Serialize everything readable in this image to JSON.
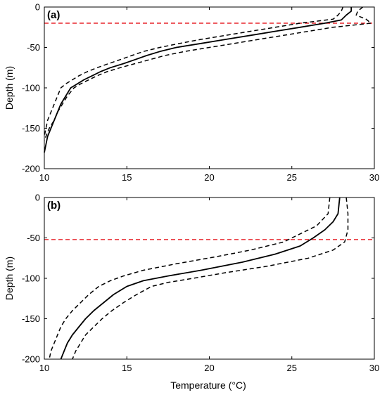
{
  "figure": {
    "ylabel": "Depth (m)",
    "xlabel": "Temperature (°C)"
  },
  "colors": {
    "profile": "#000000",
    "reference_line": "#e8262d",
    "axes": "#000000"
  },
  "chart_data": [
    {
      "type": "line",
      "panel_label": "(a)",
      "xlabel": "",
      "ylabel": "Depth (m)",
      "xlim": [
        10,
        30
      ],
      "ylim": [
        -200,
        0
      ],
      "xticks": [
        10,
        15,
        20,
        25,
        30
      ],
      "yticks": [
        0,
        -50,
        -100,
        -150,
        -200
      ],
      "grid": false,
      "legend": "none",
      "reference_line": {
        "y": -20,
        "style": "dashed",
        "color": "#e8262d"
      },
      "series": [
        {
          "role": "mean",
          "style": "solid",
          "points": [
            [
              28.6,
              0
            ],
            [
              28.6,
              -5
            ],
            [
              28.3,
              -10
            ],
            [
              28.0,
              -16
            ],
            [
              27.0,
              -20
            ],
            [
              25.5,
              -25
            ],
            [
              24.0,
              -30
            ],
            [
              22.5,
              -35
            ],
            [
              21.0,
              -40
            ],
            [
              19.5,
              -45
            ],
            [
              18.0,
              -50
            ],
            [
              17.0,
              -55
            ],
            [
              16.2,
              -60
            ],
            [
              15.5,
              -65
            ],
            [
              14.8,
              -70
            ],
            [
              14.0,
              -75
            ],
            [
              13.4,
              -80
            ],
            [
              12.9,
              -85
            ],
            [
              12.4,
              -90
            ],
            [
              12.0,
              -95
            ],
            [
              11.6,
              -100
            ],
            [
              11.3,
              -110
            ],
            [
              11.0,
              -120
            ],
            [
              10.8,
              -130
            ],
            [
              10.6,
              -140
            ],
            [
              10.4,
              -150
            ],
            [
              10.2,
              -160
            ],
            [
              10.1,
              -170
            ],
            [
              10.0,
              -180
            ]
          ]
        },
        {
          "role": "upper",
          "style": "dashed",
          "points": [
            [
              29.3,
              0
            ],
            [
              29.0,
              -5
            ],
            [
              28.9,
              -10
            ],
            [
              29.5,
              -15
            ],
            [
              29.8,
              -20
            ],
            [
              27.5,
              -25
            ],
            [
              26.0,
              -30
            ],
            [
              24.5,
              -35
            ],
            [
              23.0,
              -40
            ],
            [
              21.5,
              -45
            ],
            [
              20.0,
              -50
            ],
            [
              18.5,
              -55
            ],
            [
              17.3,
              -60
            ],
            [
              16.4,
              -65
            ],
            [
              15.5,
              -70
            ],
            [
              14.6,
              -75
            ],
            [
              13.8,
              -80
            ],
            [
              13.2,
              -85
            ],
            [
              12.7,
              -90
            ],
            [
              12.2,
              -95
            ],
            [
              11.8,
              -100
            ],
            [
              11.4,
              -110
            ],
            [
              11.1,
              -120
            ],
            [
              10.8,
              -130
            ],
            [
              10.6,
              -140
            ],
            [
              10.3,
              -150
            ],
            [
              10.1,
              -160
            ],
            [
              10.0,
              -165
            ]
          ]
        },
        {
          "role": "lower",
          "style": "dashed",
          "points": [
            [
              28.1,
              0
            ],
            [
              28.0,
              -5
            ],
            [
              27.8,
              -10
            ],
            [
              27.5,
              -15
            ],
            [
              25.5,
              -20
            ],
            [
              24.0,
              -25
            ],
            [
              22.5,
              -30
            ],
            [
              21.0,
              -35
            ],
            [
              19.5,
              -40
            ],
            [
              18.2,
              -45
            ],
            [
              17.0,
              -50
            ],
            [
              16.0,
              -55
            ],
            [
              15.3,
              -60
            ],
            [
              14.6,
              -65
            ],
            [
              13.9,
              -70
            ],
            [
              13.2,
              -75
            ],
            [
              12.6,
              -80
            ],
            [
              12.1,
              -85
            ],
            [
              11.7,
              -90
            ],
            [
              11.3,
              -95
            ],
            [
              11.0,
              -100
            ],
            [
              10.8,
              -110
            ],
            [
              10.6,
              -120
            ],
            [
              10.4,
              -130
            ],
            [
              10.2,
              -140
            ],
            [
              10.1,
              -150
            ],
            [
              10.0,
              -160
            ]
          ]
        }
      ]
    },
    {
      "type": "line",
      "panel_label": "(b)",
      "xlabel": "Temperature (°C)",
      "ylabel": "Depth (m)",
      "xlim": [
        10,
        30
      ],
      "ylim": [
        -200,
        0
      ],
      "xticks": [
        10,
        15,
        20,
        25,
        30
      ],
      "yticks": [
        0,
        -50,
        -100,
        -150,
        -200
      ],
      "grid": false,
      "legend": "none",
      "reference_line": {
        "y": -52,
        "style": "dashed",
        "color": "#e8262d"
      },
      "series": [
        {
          "role": "mean",
          "style": "solid",
          "points": [
            [
              27.9,
              0
            ],
            [
              27.8,
              -20
            ],
            [
              27.5,
              -30
            ],
            [
              27.0,
              -40
            ],
            [
              26.3,
              -50
            ],
            [
              25.5,
              -60
            ],
            [
              24.0,
              -70
            ],
            [
              22.0,
              -80
            ],
            [
              19.5,
              -90
            ],
            [
              17.5,
              -97
            ],
            [
              16.0,
              -103
            ],
            [
              15.0,
              -110
            ],
            [
              14.2,
              -120
            ],
            [
              13.6,
              -130
            ],
            [
              13.0,
              -140
            ],
            [
              12.5,
              -150
            ],
            [
              12.1,
              -160
            ],
            [
              11.7,
              -170
            ],
            [
              11.4,
              -180
            ],
            [
              11.2,
              -190
            ],
            [
              11.0,
              -200
            ]
          ]
        },
        {
          "role": "upper",
          "style": "dashed",
          "points": [
            [
              28.3,
              0
            ],
            [
              28.4,
              -20
            ],
            [
              28.4,
              -40
            ],
            [
              28.2,
              -55
            ],
            [
              27.5,
              -65
            ],
            [
              26.0,
              -75
            ],
            [
              23.5,
              -85
            ],
            [
              21.0,
              -93
            ],
            [
              19.0,
              -100
            ],
            [
              17.5,
              -105
            ],
            [
              16.5,
              -110
            ],
            [
              15.6,
              -120
            ],
            [
              14.8,
              -130
            ],
            [
              14.1,
              -140
            ],
            [
              13.5,
              -150
            ],
            [
              13.0,
              -160
            ],
            [
              12.5,
              -170
            ],
            [
              12.2,
              -180
            ],
            [
              11.9,
              -190
            ],
            [
              11.7,
              -200
            ]
          ]
        },
        {
          "role": "lower",
          "style": "dashed",
          "points": [
            [
              27.3,
              0
            ],
            [
              27.2,
              -20
            ],
            [
              26.5,
              -35
            ],
            [
              25.5,
              -45
            ],
            [
              24.5,
              -55
            ],
            [
              22.5,
              -65
            ],
            [
              20.5,
              -73
            ],
            [
              18.0,
              -82
            ],
            [
              16.0,
              -90
            ],
            [
              14.8,
              -97
            ],
            [
              14.0,
              -103
            ],
            [
              13.3,
              -110
            ],
            [
              12.7,
              -120
            ],
            [
              12.2,
              -130
            ],
            [
              11.7,
              -140
            ],
            [
              11.3,
              -150
            ],
            [
              11.0,
              -160
            ],
            [
              10.8,
              -170
            ],
            [
              10.6,
              -180
            ],
            [
              10.4,
              -190
            ],
            [
              10.3,
              -200
            ]
          ]
        }
      ]
    }
  ]
}
